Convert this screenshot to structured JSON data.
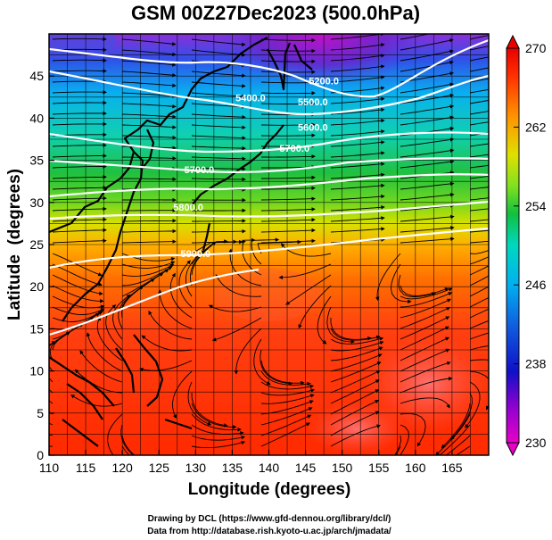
{
  "title": "GSM 00Z27Dec2023 (500.0hPa)",
  "credits": {
    "line1": "Drawing by DCL (https://www.gfd-dennou.org/library/dcl/)",
    "line2": "Data from http://database.rish.kyoto-u.ac.jp/arch/jmadata/"
  },
  "chart_data": {
    "type": "heatmap",
    "xlabel": "Longitude (degrees)",
    "ylabel": "Latitude  (degrees)",
    "xlim": [
      110,
      170
    ],
    "ylim": [
      0,
      50
    ],
    "x_ticks": [
      110,
      115,
      120,
      125,
      130,
      135,
      140,
      145,
      150,
      155,
      160,
      165
    ],
    "y_ticks": [
      0,
      5,
      10,
      15,
      20,
      25,
      30,
      35,
      40,
      45
    ],
    "colorbar": {
      "ticks": [
        230,
        238,
        246,
        254,
        262,
        270
      ],
      "range": [
        230,
        270
      ],
      "colors": [
        "#e800c8",
        "#9000d0",
        "#1010c8",
        "#1060e0",
        "#00b0f0",
        "#00d8c0",
        "#10c040",
        "#80e020",
        "#e0e000",
        "#ff9000",
        "#ff3000",
        "#e80000"
      ]
    },
    "contours": [
      {
        "label": "5200.0",
        "lon": 147.5,
        "lat": 44.0
      },
      {
        "label": "5400.0",
        "lon": 137.5,
        "lat": 42.0
      },
      {
        "label": "5500.0",
        "lon": 146.0,
        "lat": 41.5
      },
      {
        "label": "5600.0",
        "lon": 146.0,
        "lat": 38.5
      },
      {
        "label": "5700.0",
        "lon": 143.5,
        "lat": 36.0
      },
      {
        "label": "5700.0",
        "lon": 130.5,
        "lat": 33.5
      },
      {
        "label": "5800.0",
        "lon": 129.0,
        "lat": 29.0
      },
      {
        "label": "5900.0",
        "lon": 130.0,
        "lat": 23.5
      }
    ],
    "vector_field": "streamlines (500 hPa wind)"
  }
}
